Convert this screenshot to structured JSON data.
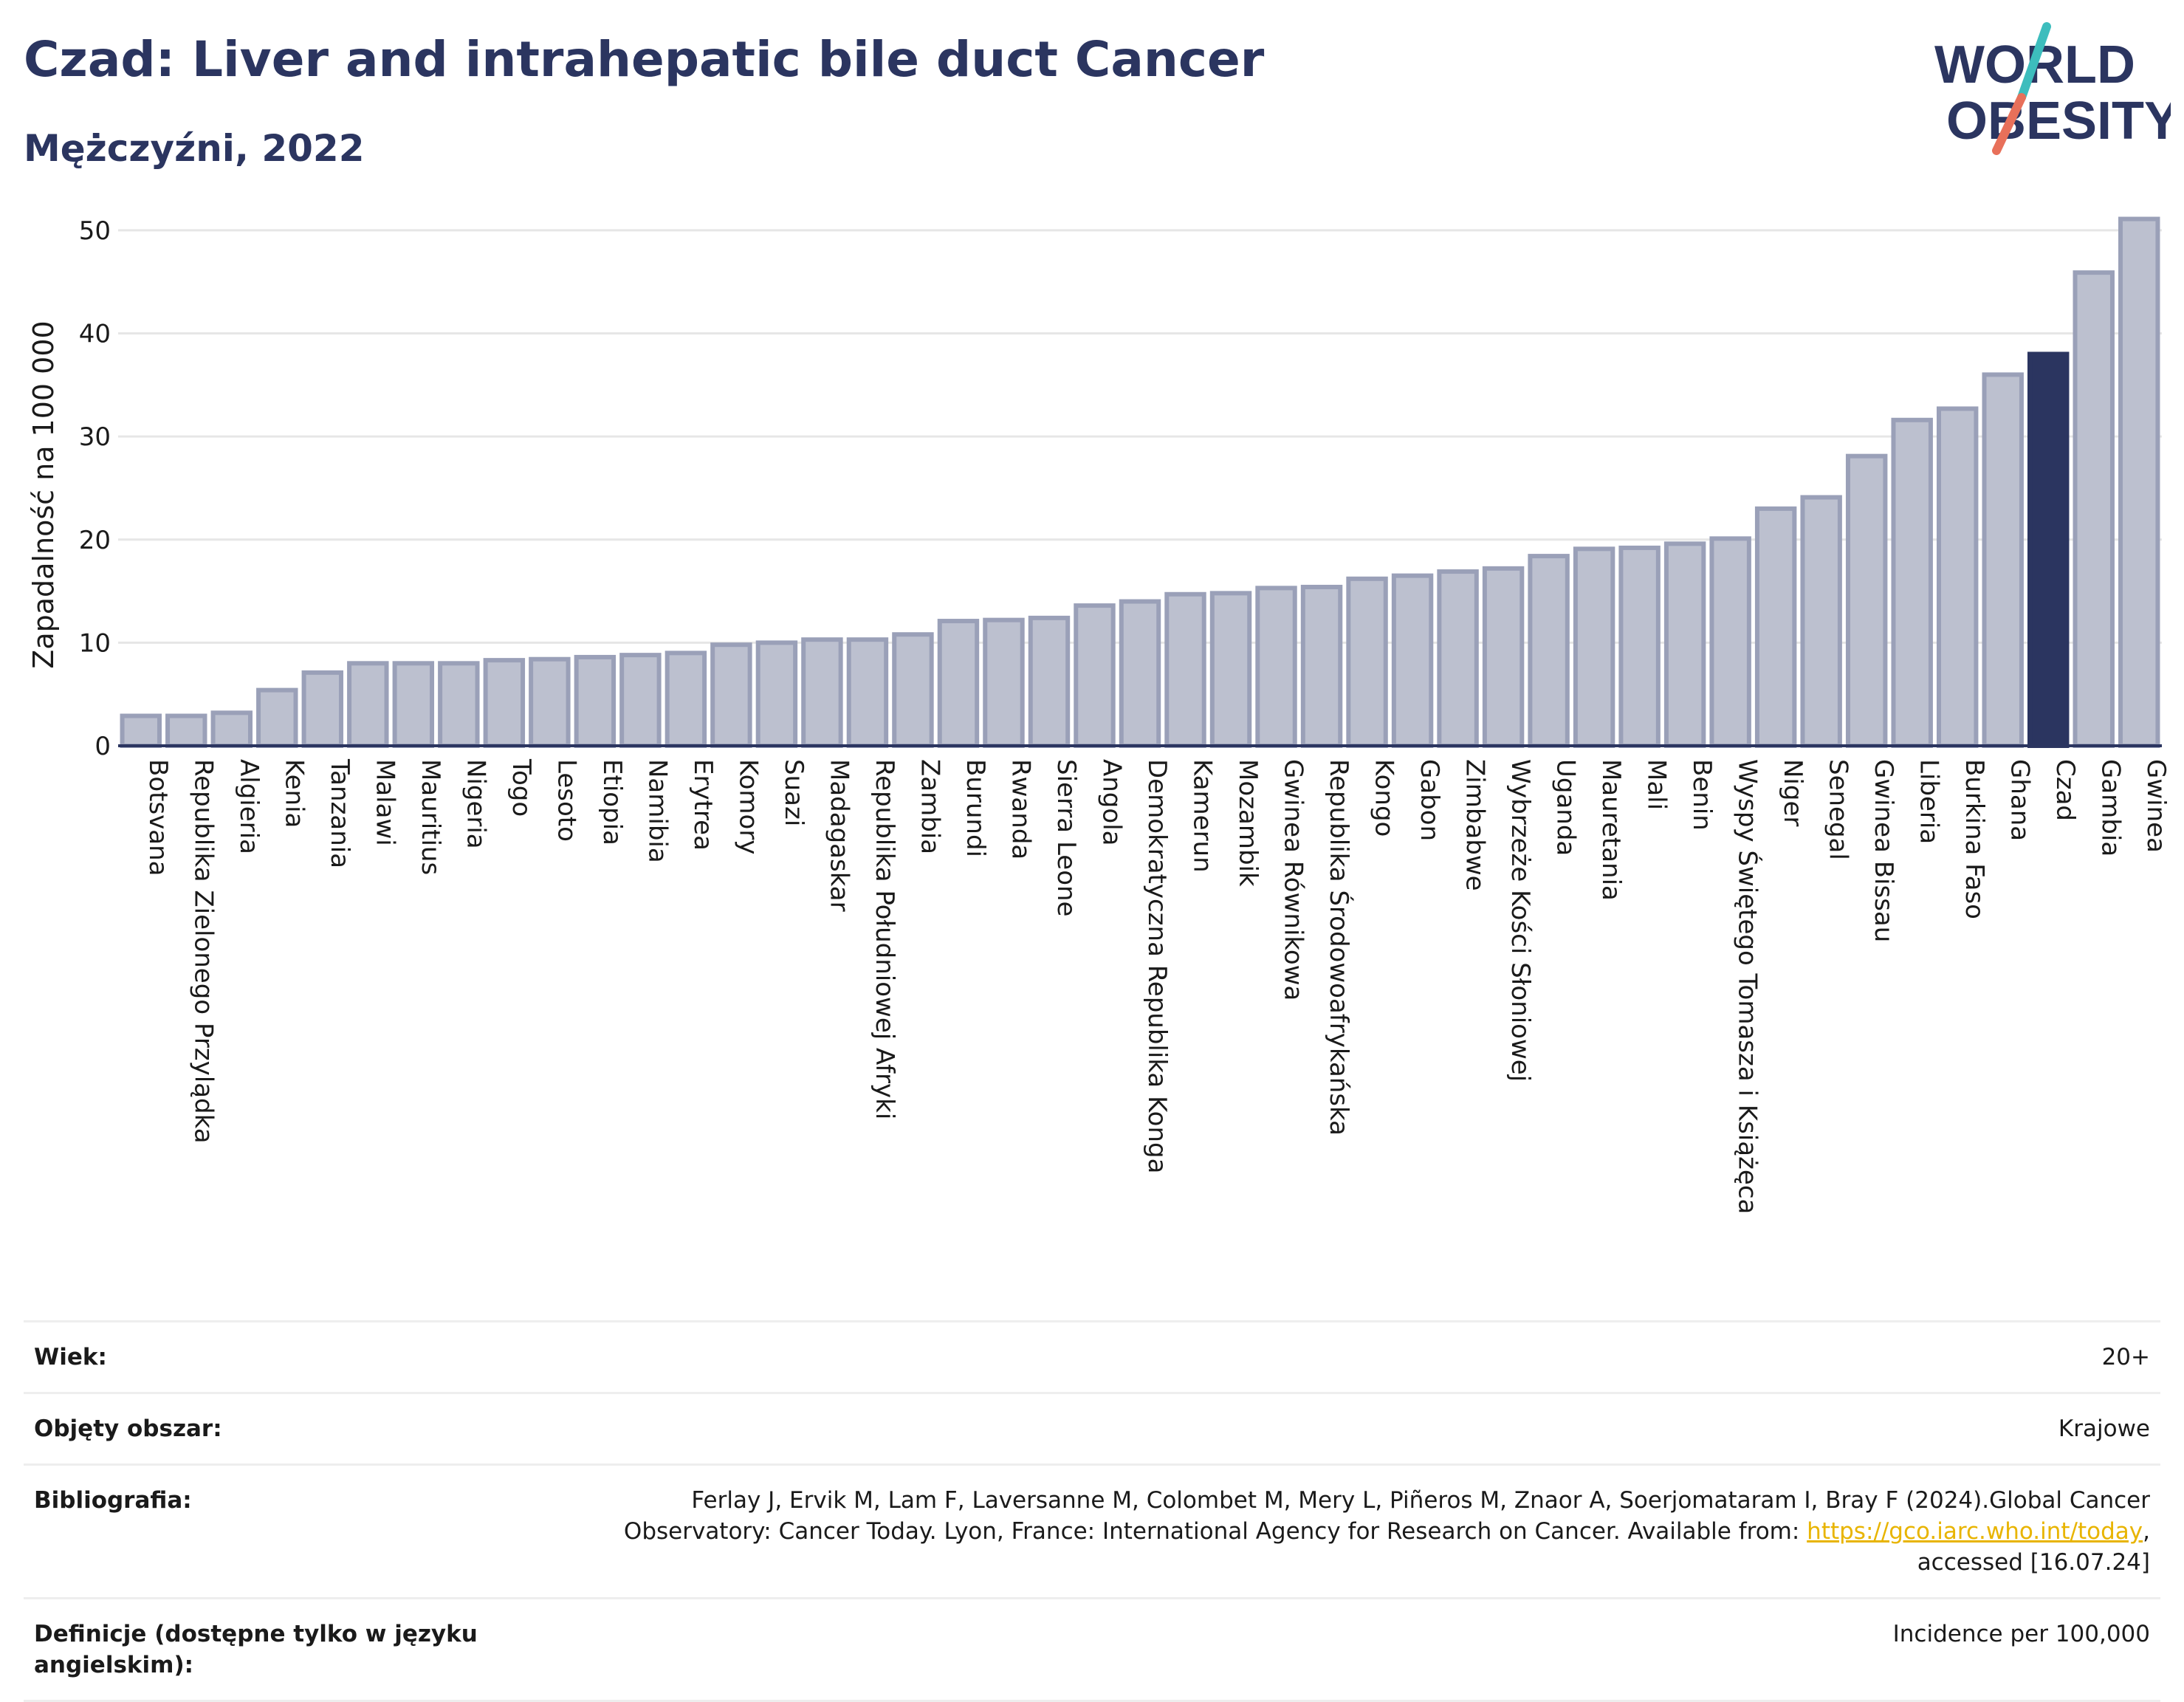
{
  "header": {
    "title": "Czad: Liver and intrahepatic bile duct Cancer",
    "subtitle": "Mężczyźni, 2022"
  },
  "logo": {
    "line1": "WORLD",
    "line2": "OBESITY",
    "colors": {
      "text": "#2b3560",
      "slash_top": "#3dbdbd",
      "slash_bottom": "#e8705a"
    }
  },
  "chart_data": {
    "type": "bar",
    "ylabel": "Zapadalność na 100 000",
    "ylim": [
      0,
      53
    ],
    "yticks": [
      0,
      10,
      20,
      30,
      40,
      50
    ],
    "grid": true,
    "highlight": "Czad",
    "colors": {
      "bar": "#bcc0cf",
      "bar_border": "#9aa0b8",
      "highlight": "#2b3560"
    },
    "categories": [
      "Botsvana",
      "Republika Zielonego Przylądka",
      "Algieria",
      "Kenia",
      "Tanzania",
      "Malawi",
      "Mauritius",
      "Nigeria",
      "Togo",
      "Lesoto",
      "Etiopia",
      "Namibia",
      "Erytrea",
      "Komory",
      "Suazi",
      "Madagaskar",
      "Republika Południowej Afryki",
      "Zambia",
      "Burundi",
      "Rwanda",
      "Sierra Leone",
      "Angola",
      "Demokratyczna Republika Konga",
      "Kamerun",
      "Mozambik",
      "Gwinea Równikowa",
      "Republika Środowoafrykańska",
      "Kongo",
      "Gabon",
      "Zimbabwe",
      "Wybrzeże Kości Słoniowej",
      "Uganda",
      "Mauretania",
      "Mali",
      "Benin",
      "Wyspy Świętego Tomasza i Książęca",
      "Niger",
      "Senegal",
      "Gwinea Bissau",
      "Liberia",
      "Burkina Faso",
      "Ghana",
      "Czad",
      "Gambia",
      "Gwinea"
    ],
    "values": [
      2.9,
      2.9,
      3.2,
      5.4,
      7.1,
      8.0,
      8.0,
      8.0,
      8.3,
      8.4,
      8.6,
      8.8,
      9.0,
      9.8,
      10.0,
      10.3,
      10.3,
      10.8,
      12.1,
      12.2,
      12.4,
      13.6,
      14.0,
      14.7,
      14.8,
      15.3,
      15.4,
      16.2,
      16.5,
      16.9,
      17.2,
      18.4,
      19.1,
      19.2,
      19.6,
      20.1,
      23.0,
      24.1,
      28.1,
      31.6,
      32.7,
      36.0,
      38.0,
      45.9,
      51.1
    ]
  },
  "meta": {
    "age_label": "Wiek:",
    "age_value": "20+",
    "area_label": "Objęty obszar:",
    "area_value": "Krajowe",
    "bib_label": "Bibliografia:",
    "bib_text1": "Ferlay J, Ervik M, Lam F, Laversanne M, Colombet M, Mery L, Piñeros M, Znaor A, Soerjomataram I, Bray F (2024).Global Cancer",
    "bib_text2": "Observatory: Cancer Today. Lyon, France: International Agency for Research on Cancer. Available from: ",
    "bib_link": "https://gco.iarc.who.int/today",
    "bib_text3": ",",
    "bib_text4": "accessed [16.07.24]",
    "def_label": "Definicje (dostępne tylko w języku angielskim):",
    "def_value": "Incidence per 100,000"
  }
}
